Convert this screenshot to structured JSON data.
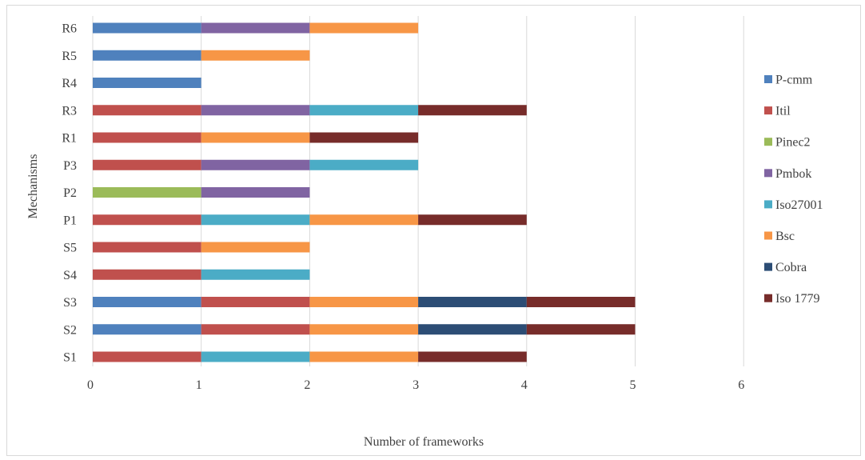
{
  "chart_data": {
    "type": "bar",
    "orientation": "horizontal",
    "stacked": true,
    "title": "",
    "xlabel": "Number of frameworks",
    "ylabel": "Mechanisms",
    "xlim": [
      0,
      6
    ],
    "x_ticks": [
      "0",
      "1",
      "2",
      "3",
      "4",
      "5",
      "6"
    ],
    "grid": "vertical",
    "legend_position": "right",
    "categories": [
      "S1",
      "S2",
      "S3",
      "S4",
      "S5",
      "P1",
      "P2",
      "P3",
      "R1",
      "R3",
      "R4",
      "R5",
      "R6"
    ],
    "series": [
      {
        "name": "P-cmm",
        "color": "#4f81bd",
        "values": [
          0,
          1,
          1,
          0,
          0,
          0,
          0,
          0,
          0,
          0,
          1,
          1,
          1
        ]
      },
      {
        "name": "Itil",
        "color": "#c0504d",
        "values": [
          1,
          1,
          1,
          1,
          1,
          1,
          0,
          1,
          1,
          1,
          0,
          0,
          0
        ]
      },
      {
        "name": "Pinec2",
        "color": "#9bbb59",
        "values": [
          0,
          0,
          0,
          0,
          0,
          0,
          1,
          0,
          0,
          0,
          0,
          0,
          0
        ]
      },
      {
        "name": "Pmbok",
        "color": "#8064a2",
        "values": [
          0,
          0,
          0,
          0,
          0,
          0,
          1,
          1,
          0,
          1,
          0,
          0,
          1
        ]
      },
      {
        "name": "Iso27001",
        "color": "#4bacc6",
        "values": [
          1,
          0,
          0,
          1,
          0,
          1,
          0,
          1,
          0,
          1,
          0,
          0,
          0
        ]
      },
      {
        "name": "Bsc",
        "color": "#f79646",
        "values": [
          1,
          1,
          1,
          0,
          1,
          1,
          0,
          0,
          1,
          0,
          0,
          1,
          1
        ]
      },
      {
        "name": "Cobra",
        "color": "#2c4d75",
        "values": [
          0,
          1,
          1,
          0,
          0,
          0,
          0,
          0,
          0,
          0,
          0,
          0,
          0
        ]
      },
      {
        "name": "Iso 1779",
        "color": "#772c2a",
        "values": [
          1,
          1,
          1,
          0,
          0,
          1,
          0,
          0,
          1,
          1,
          0,
          0,
          0
        ]
      }
    ]
  }
}
